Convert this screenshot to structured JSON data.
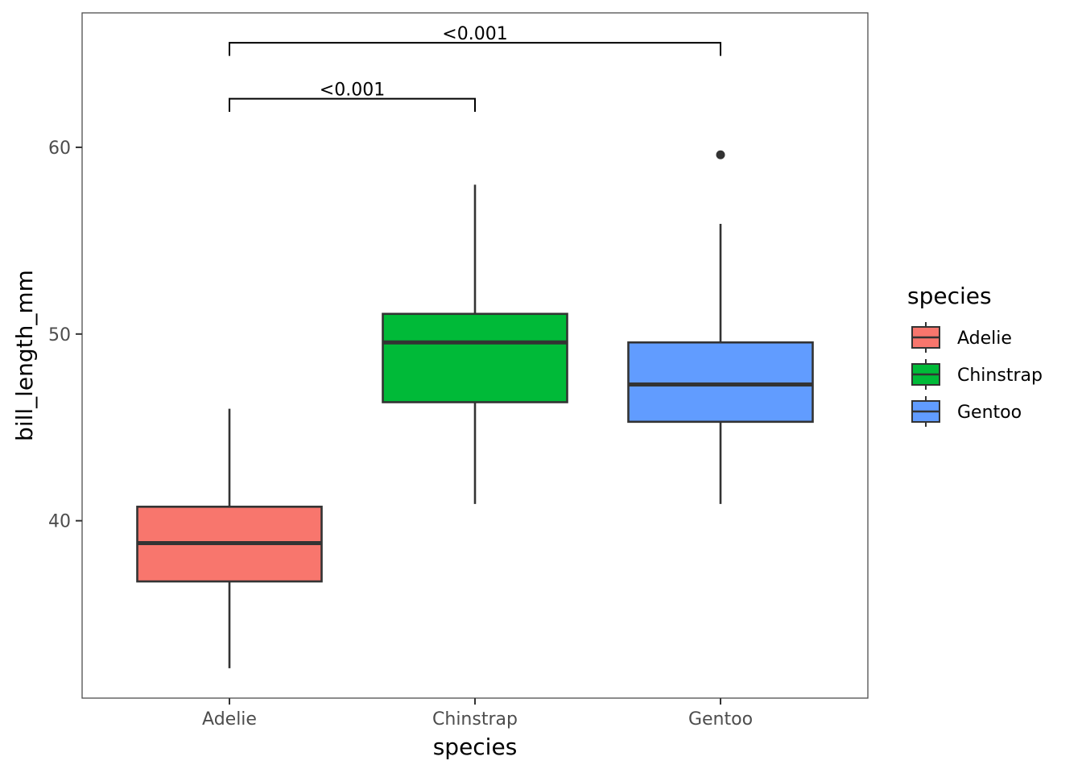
{
  "chart_data": {
    "type": "boxplot",
    "xlabel": "species",
    "ylabel": "bill_length_mm",
    "categories": [
      "Adelie",
      "Chinstrap",
      "Gentoo"
    ],
    "ylim": [
      30.5,
      67.2
    ],
    "yticks": [
      40,
      50,
      60
    ],
    "grid": false,
    "legend": {
      "title": "species",
      "position": "right",
      "entries": [
        "Adelie",
        "Chinstrap",
        "Gentoo"
      ]
    },
    "colors": {
      "Adelie": "#F8766D",
      "Chinstrap": "#00BA38",
      "Gentoo": "#619CFF"
    },
    "boxes": [
      {
        "category": "Adelie",
        "whisker_low": 32.1,
        "q1": 36.75,
        "median": 38.8,
        "q3": 40.75,
        "whisker_high": 46.0,
        "outliers": []
      },
      {
        "category": "Chinstrap",
        "whisker_low": 40.9,
        "q1": 46.35,
        "median": 49.55,
        "q3": 51.08,
        "whisker_high": 58.0,
        "outliers": []
      },
      {
        "category": "Gentoo",
        "whisker_low": 40.9,
        "q1": 45.3,
        "median": 47.3,
        "q3": 49.55,
        "whisker_high": 55.9,
        "outliers": [
          59.6
        ]
      }
    ],
    "comparisons": [
      {
        "from": "Adelie",
        "to": "Chinstrap",
        "label": "<0.001",
        "y": 62.6,
        "tip": 61.9
      },
      {
        "from": "Adelie",
        "to": "Gentoo",
        "label": "<0.001",
        "y": 65.6,
        "tip": 64.9
      }
    ]
  }
}
